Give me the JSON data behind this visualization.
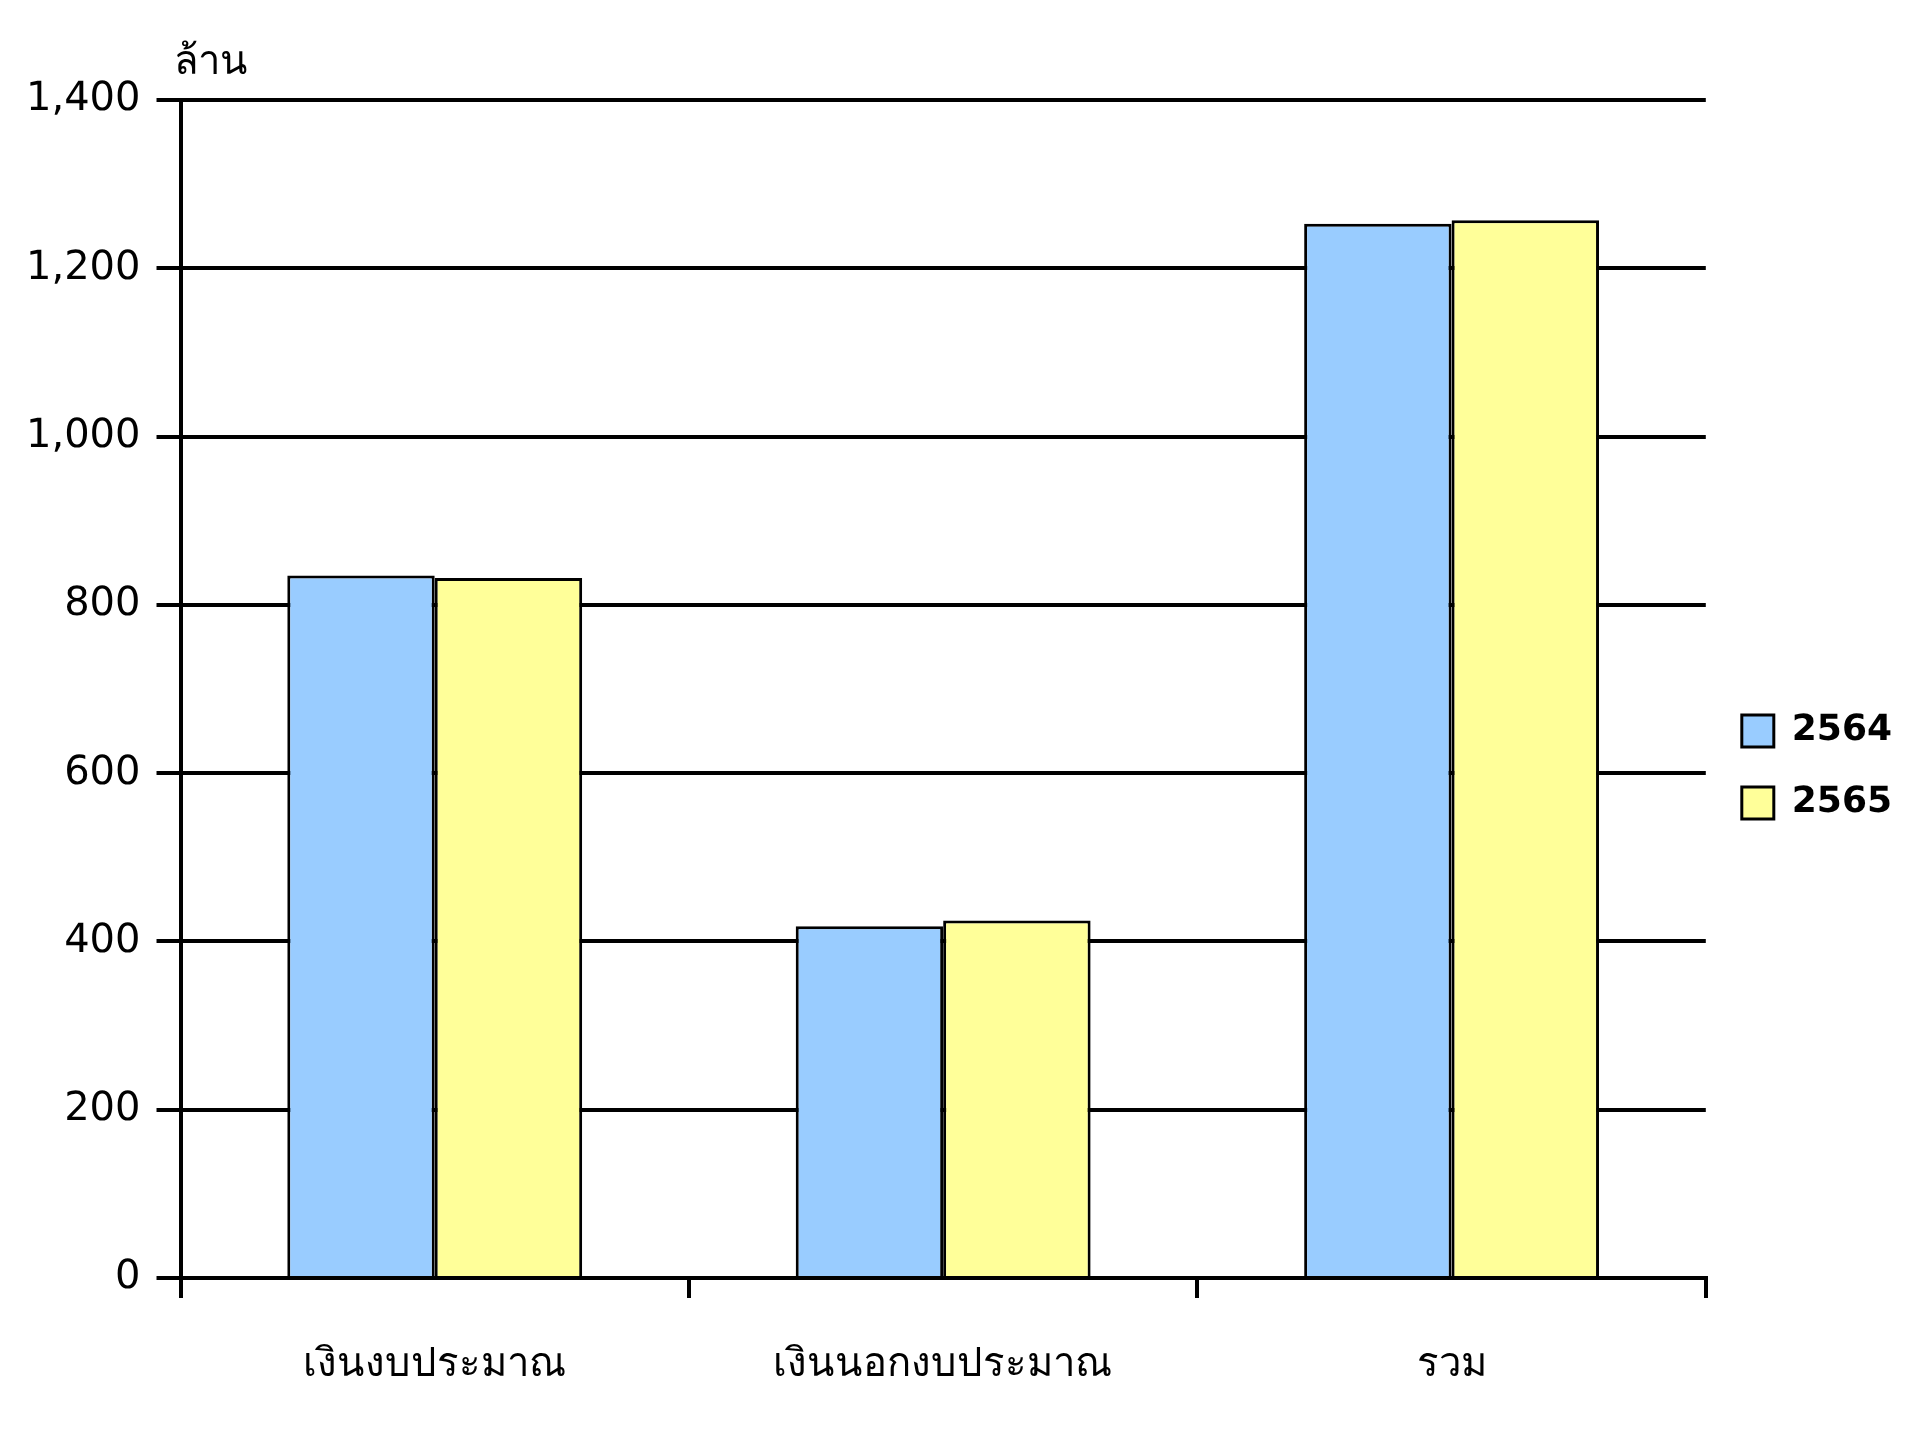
{
  "chart_data": {
    "type": "bar",
    "ylabel": "ล้าน",
    "categories": [
      "เงินงบประมาณ",
      "เงินนอกงบประมาณ",
      "รวม"
    ],
    "series": [
      {
        "name": "2564",
        "color": "#99ccff",
        "values": [
          835,
          418,
          1253
        ]
      },
      {
        "name": "2565",
        "color": "#ffff99",
        "values": [
          832,
          425,
          1257
        ]
      }
    ],
    "ylim": [
      0,
      1400
    ],
    "yticks": [
      0,
      200,
      400,
      600,
      800,
      {
        "value": 1000,
        "label": "1,000"
      },
      {
        "value": 1200,
        "label": "1,200"
      },
      {
        "value": 1400,
        "label": "1,400"
      }
    ],
    "grid": "y",
    "legend": "right"
  }
}
